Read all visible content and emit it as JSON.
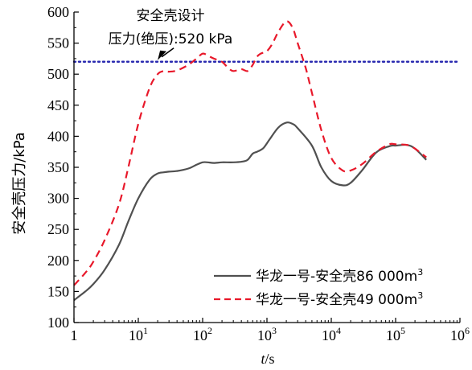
{
  "chart_data": {
    "type": "line",
    "xscale": "log",
    "xlim": [
      1,
      1000000
    ],
    "ylim": [
      100,
      600
    ],
    "xlabel": "t/s",
    "ylabel": "安全壳压力/kPa",
    "xticks": [
      1,
      10,
      100,
      1000,
      10000,
      100000,
      1000000
    ],
    "xtick_labels": [
      {
        "base": "1",
        "exp": ""
      },
      {
        "base": "10",
        "exp": "1"
      },
      {
        "base": "10",
        "exp": "2"
      },
      {
        "base": "10",
        "exp": "3"
      },
      {
        "base": "10",
        "exp": "4"
      },
      {
        "base": "10",
        "exp": "5"
      },
      {
        "base": "10",
        "exp": "6"
      }
    ],
    "yticks": [
      100,
      150,
      200,
      250,
      300,
      350,
      400,
      450,
      500,
      550,
      600
    ],
    "grid": false,
    "legend_position": "bottom-right",
    "reference_line": {
      "y": 520,
      "style": "dotted",
      "color": "#2b2bb0"
    },
    "annotation": {
      "line1": "安全壳设计",
      "line2": "压力(绝压):520 kPa",
      "points_to": {
        "x": 20,
        "y": 520
      }
    },
    "series": [
      {
        "name": "华龙一号-安全壳86 000m",
        "name_sup": "3",
        "color": "#505050",
        "dash": "solid",
        "x": [
          1,
          1.5,
          2,
          3,
          5,
          7,
          10,
          15,
          20,
          25,
          30,
          40,
          60,
          80,
          100,
          120,
          150,
          200,
          300,
          400,
          500,
          600,
          700,
          800,
          900,
          1100,
          1500,
          2000,
          2500,
          3000,
          5000,
          7000,
          10000,
          15000,
          20000,
          30000,
          50000,
          80000,
          100000,
          150000,
          200000,
          300000
        ],
        "y": [
          136,
          150,
          162,
          185,
          225,
          263,
          300,
          330,
          340,
          342,
          343,
          344,
          348,
          354,
          358,
          358,
          357,
          358,
          358,
          359,
          362,
          372,
          375,
          378,
          382,
          395,
          414,
          422,
          420,
          413,
          385,
          350,
          328,
          321,
          325,
          345,
          374,
          384,
          385,
          386,
          380,
          362
        ]
      },
      {
        "name": "华龙一号-安全壳49 000m",
        "name_sup": "3",
        "color": "#e8182a",
        "dash": "dashed",
        "x": [
          1,
          1.5,
          2,
          3,
          5,
          7,
          10,
          15,
          20,
          25,
          30,
          40,
          60,
          80,
          100,
          120,
          150,
          200,
          250,
          300,
          400,
          500,
          600,
          700,
          800,
          900,
          1000,
          1200,
          1500,
          2000,
          2500,
          3000,
          4000,
          5000,
          7000,
          10000,
          15000,
          20000,
          30000,
          50000,
          80000,
          100000,
          150000,
          200000,
          300000
        ],
        "y": [
          160,
          180,
          198,
          233,
          290,
          350,
          420,
          478,
          500,
          505,
          504,
          506,
          515,
          525,
          533,
          530,
          525,
          520,
          510,
          505,
          508,
          505,
          515,
          528,
          533,
          535,
          537,
          548,
          568,
          585,
          575,
          550,
          510,
          470,
          410,
          365,
          345,
          345,
          355,
          375,
          387,
          387,
          386,
          380,
          366
        ]
      }
    ]
  }
}
